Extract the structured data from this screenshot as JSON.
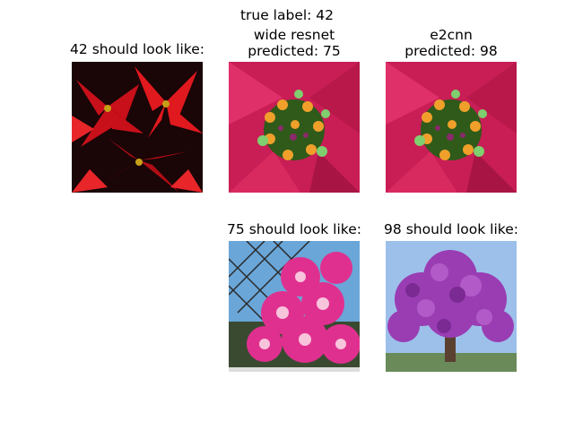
{
  "suptitle": "true label: 42",
  "panels": {
    "original": {
      "title": "42 should look like:"
    },
    "wide_resnet": {
      "title_line1": "wide resnet",
      "title_line2": "predicted: 75"
    },
    "e2cnn": {
      "title_line1": "e2cnn",
      "title_line2": "predicted: 98"
    },
    "class75": {
      "title": "75 should look like:"
    },
    "class98": {
      "title": "98 should look like:"
    }
  },
  "images": {
    "poinsettia": {
      "icon": "red-poinsettia-photo",
      "colors": [
        "#d9151a",
        "#8c0a10",
        "#1a0507"
      ]
    },
    "pink_flower": {
      "icon": "pink-flower-closeup-photo",
      "colors": [
        "#d8265f",
        "#f0a02a",
        "#7fcf6f"
      ]
    },
    "pink_roses": {
      "icon": "pink-roses-fence-photo",
      "colors": [
        "#e0308f",
        "#6aa6d8",
        "#3a4a30"
      ]
    },
    "purple_tree": {
      "icon": "purple-flowering-tree-photo",
      "colors": [
        "#9a3db3",
        "#9cc0ea",
        "#6a8a5a"
      ]
    }
  }
}
